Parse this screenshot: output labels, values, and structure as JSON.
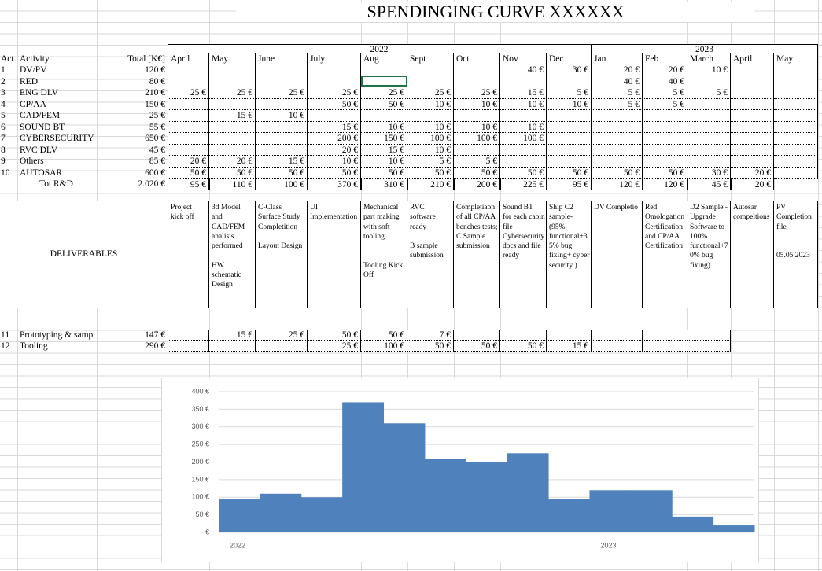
{
  "title": "SPENDINGING CURVE XXXXXX",
  "table": {
    "header": {
      "act": "Act.",
      "activity": "Activity",
      "total": "Total [K€]"
    },
    "years": [
      {
        "label": "2022",
        "first": 0,
        "last": 8
      },
      {
        "label": "2023",
        "first": 9,
        "last": 13
      }
    ],
    "months": [
      "April",
      "May",
      "June",
      "July",
      "Aug",
      "Sept",
      "Oct",
      "Nov",
      "Dec",
      "Jan",
      "Feb",
      "March",
      "April",
      "May"
    ],
    "rows": [
      {
        "act": "1",
        "activity": "DV/PV",
        "total": "120 €",
        "cells": [
          null,
          null,
          null,
          null,
          null,
          null,
          null,
          "40 €",
          "30 €",
          "20 €",
          "20 €",
          "10 €",
          null,
          null
        ]
      },
      {
        "act": "2",
        "activity": "RED",
        "total": "80 €",
        "cells": [
          null,
          null,
          null,
          null,
          null,
          null,
          null,
          null,
          null,
          "40 €",
          "40 €",
          null,
          null,
          null
        ]
      },
      {
        "act": "3",
        "activity": "ENG DLV",
        "total": "210 €",
        "cells": [
          "25 €",
          "25 €",
          "25 €",
          "25 €",
          "25 €",
          "25 €",
          "25 €",
          "15 €",
          "5 €",
          "5 €",
          "5 €",
          "5 €",
          null,
          null
        ]
      },
      {
        "act": "4",
        "activity": "CP/AA",
        "total": "150 €",
        "cells": [
          null,
          null,
          null,
          "50 €",
          "50 €",
          "10 €",
          "10 €",
          "10 €",
          "10 €",
          "5 €",
          "5 €",
          null,
          null,
          null
        ]
      },
      {
        "act": "5",
        "activity": "CAD/FEM",
        "total": "25 €",
        "cells": [
          null,
          "15 €",
          "10 €",
          null,
          null,
          null,
          null,
          null,
          null,
          null,
          null,
          null,
          null,
          null
        ]
      },
      {
        "act": "6",
        "activity": "SOUND BT",
        "total": "55 €",
        "cells": [
          null,
          null,
          null,
          "15 €",
          "10 €",
          "10 €",
          "10 €",
          "10 €",
          null,
          null,
          null,
          null,
          null,
          null
        ]
      },
      {
        "act": "7",
        "activity": "CYBERSECURITY",
        "total": "650 €",
        "cells": [
          null,
          null,
          null,
          "200 €",
          "150 €",
          "100 €",
          "100 €",
          "100 €",
          null,
          null,
          null,
          null,
          null,
          null
        ]
      },
      {
        "act": "8",
        "activity": "RVC DLV",
        "total": "45 €",
        "cells": [
          null,
          null,
          null,
          "20 €",
          "15 €",
          "10 €",
          null,
          null,
          null,
          null,
          null,
          null,
          null,
          null
        ]
      },
      {
        "act": "9",
        "activity": "Others",
        "total": "85 €",
        "cells": [
          "20 €",
          "20 €",
          "15 €",
          "10 €",
          "10 €",
          "5 €",
          "5 €",
          null,
          null,
          null,
          null,
          null,
          null,
          null
        ]
      },
      {
        "act": "10",
        "activity": "AUTOSAR",
        "total": "600 €",
        "cells": [
          "50 €",
          "50 €",
          "50 €",
          "50 €",
          "50 €",
          "50 €",
          "50 €",
          "50 €",
          "50 €",
          "50 €",
          "50 €",
          "30 €",
          "20 €",
          null
        ]
      }
    ],
    "total_row": {
      "label": "Tot R&D",
      "total": "2.020 €",
      "cells": [
        "95 €",
        "110 €",
        "100 €",
        "370 €",
        "310 €",
        "210 €",
        "200 €",
        "225 €",
        "95 €",
        "120 €",
        "120 €",
        "45 €",
        "20 €",
        null
      ]
    }
  },
  "deliverables": {
    "label": "DELIVERABLES",
    "cells": [
      "Project\nkick off",
      "3d Model\nand\nCAD/FEM\nanalisis\nperformed\n\nHW\nschematic\nDesign",
      "C-Class\nSurface Study\nCompletition\n\nLayout Design",
      "UI\nImplementation",
      "Mechanical\npart making\nwith soft\ntooling\n\n\nTooling Kick\nOff",
      "RVC\nsoftware\nready\n\nB sample\nsubmission",
      "Completiaon\nof all CP/AA\nbenches tests;\nC Sample\nsubmission",
      "Sound BT\nfor each cabin\nfile\nCybersecurity\ndocs and file\nready",
      "Ship C2\nsample-\n(95%\nfunctional+3\n5% bug\nfixing+ cyber\nsecurity )",
      "DV Completio",
      "Red\nOmologation\nCertification\nand CP/AA\nCertification",
      "D2 Sample -\nUpgrade\nSoftware to\n100%\nfunctional+7\n0% bug\nfixing)",
      "Autosar\ncompeltions",
      "PV\nCompletion\nfile\n\n\n05.05.2023"
    ]
  },
  "extra_rows": [
    {
      "act": "11",
      "activity": "Prototyping & samp",
      "total": "147 €",
      "cells": [
        null,
        "15 €",
        "25 €",
        "50 €",
        "50 €",
        "7 €",
        null,
        null,
        null,
        null,
        null,
        null,
        null,
        null
      ]
    },
    {
      "act": "12",
      "activity": "Tooling",
      "total": "290 €",
      "cells": [
        null,
        null,
        null,
        "25 €",
        "100 €",
        "50 €",
        "50 €",
        "50 €",
        "15 €",
        null,
        null,
        null,
        null,
        null
      ]
    }
  ],
  "chart": {
    "type": "bar",
    "color": "#4f81bd",
    "categories": [
      "2022",
      null,
      null,
      null,
      null,
      null,
      null,
      null,
      null,
      "2023",
      null,
      null,
      null
    ],
    "values": [
      95,
      110,
      100,
      370,
      310,
      210,
      200,
      225,
      95,
      120,
      120,
      45,
      20
    ],
    "ylim": [
      0,
      400
    ],
    "yticks": [
      {
        "value": 0,
        "label": "- €"
      },
      {
        "value": 50,
        "label": "50 €"
      },
      {
        "value": 100,
        "label": "100 €"
      },
      {
        "value": 150,
        "label": "150 €"
      },
      {
        "value": 200,
        "label": "200 €"
      },
      {
        "value": 250,
        "label": "250 €"
      },
      {
        "value": 300,
        "label": "300 €"
      },
      {
        "value": 350,
        "label": "350 €"
      },
      {
        "value": 400,
        "label": "400 €"
      }
    ],
    "grid": true
  }
}
